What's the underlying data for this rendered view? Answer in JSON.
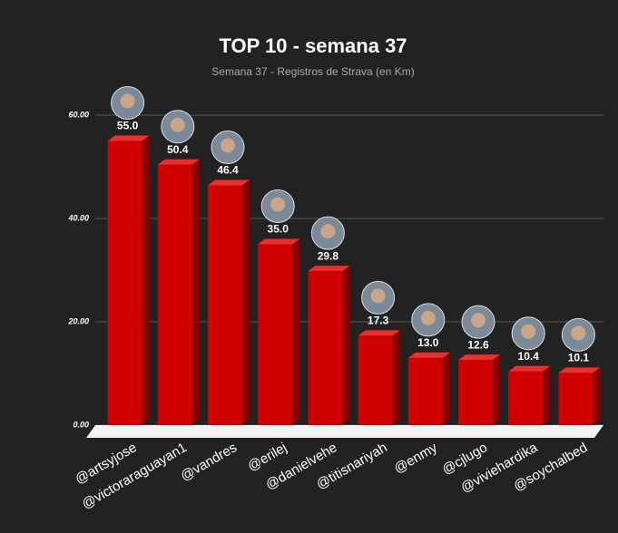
{
  "chart_data": {
    "type": "bar",
    "title": "TOP 10 - semana 37",
    "subtitle": "Semana 37 - Registros de Strava (en Km)",
    "categories": [
      "@artsyjose",
      "@victoraraguayan1",
      "@vandres",
      "@erilej",
      "@danielvehe",
      "@titisnariyah",
      "@enmy",
      "@cjlugo",
      "@viviehardika",
      "@soychalbed"
    ],
    "values": [
      55.0,
      50.4,
      46.4,
      35.0,
      29.8,
      17.3,
      13.0,
      12.6,
      10.4,
      10.1
    ],
    "value_labels": [
      "55.0",
      "50.4",
      "46.4",
      "35.0",
      "29.8",
      "17.3",
      "13.0",
      "12.6",
      "10.4",
      "10.1"
    ],
    "color": "#d10000",
    "ylim": [
      0,
      60
    ],
    "yticks": [
      {
        "value": 0,
        "label": "0.00"
      },
      {
        "value": 20,
        "label": "20.00"
      },
      {
        "value": 40,
        "label": "40.00"
      },
      {
        "value": 60,
        "label": "60.00"
      }
    ],
    "grid": true
  }
}
